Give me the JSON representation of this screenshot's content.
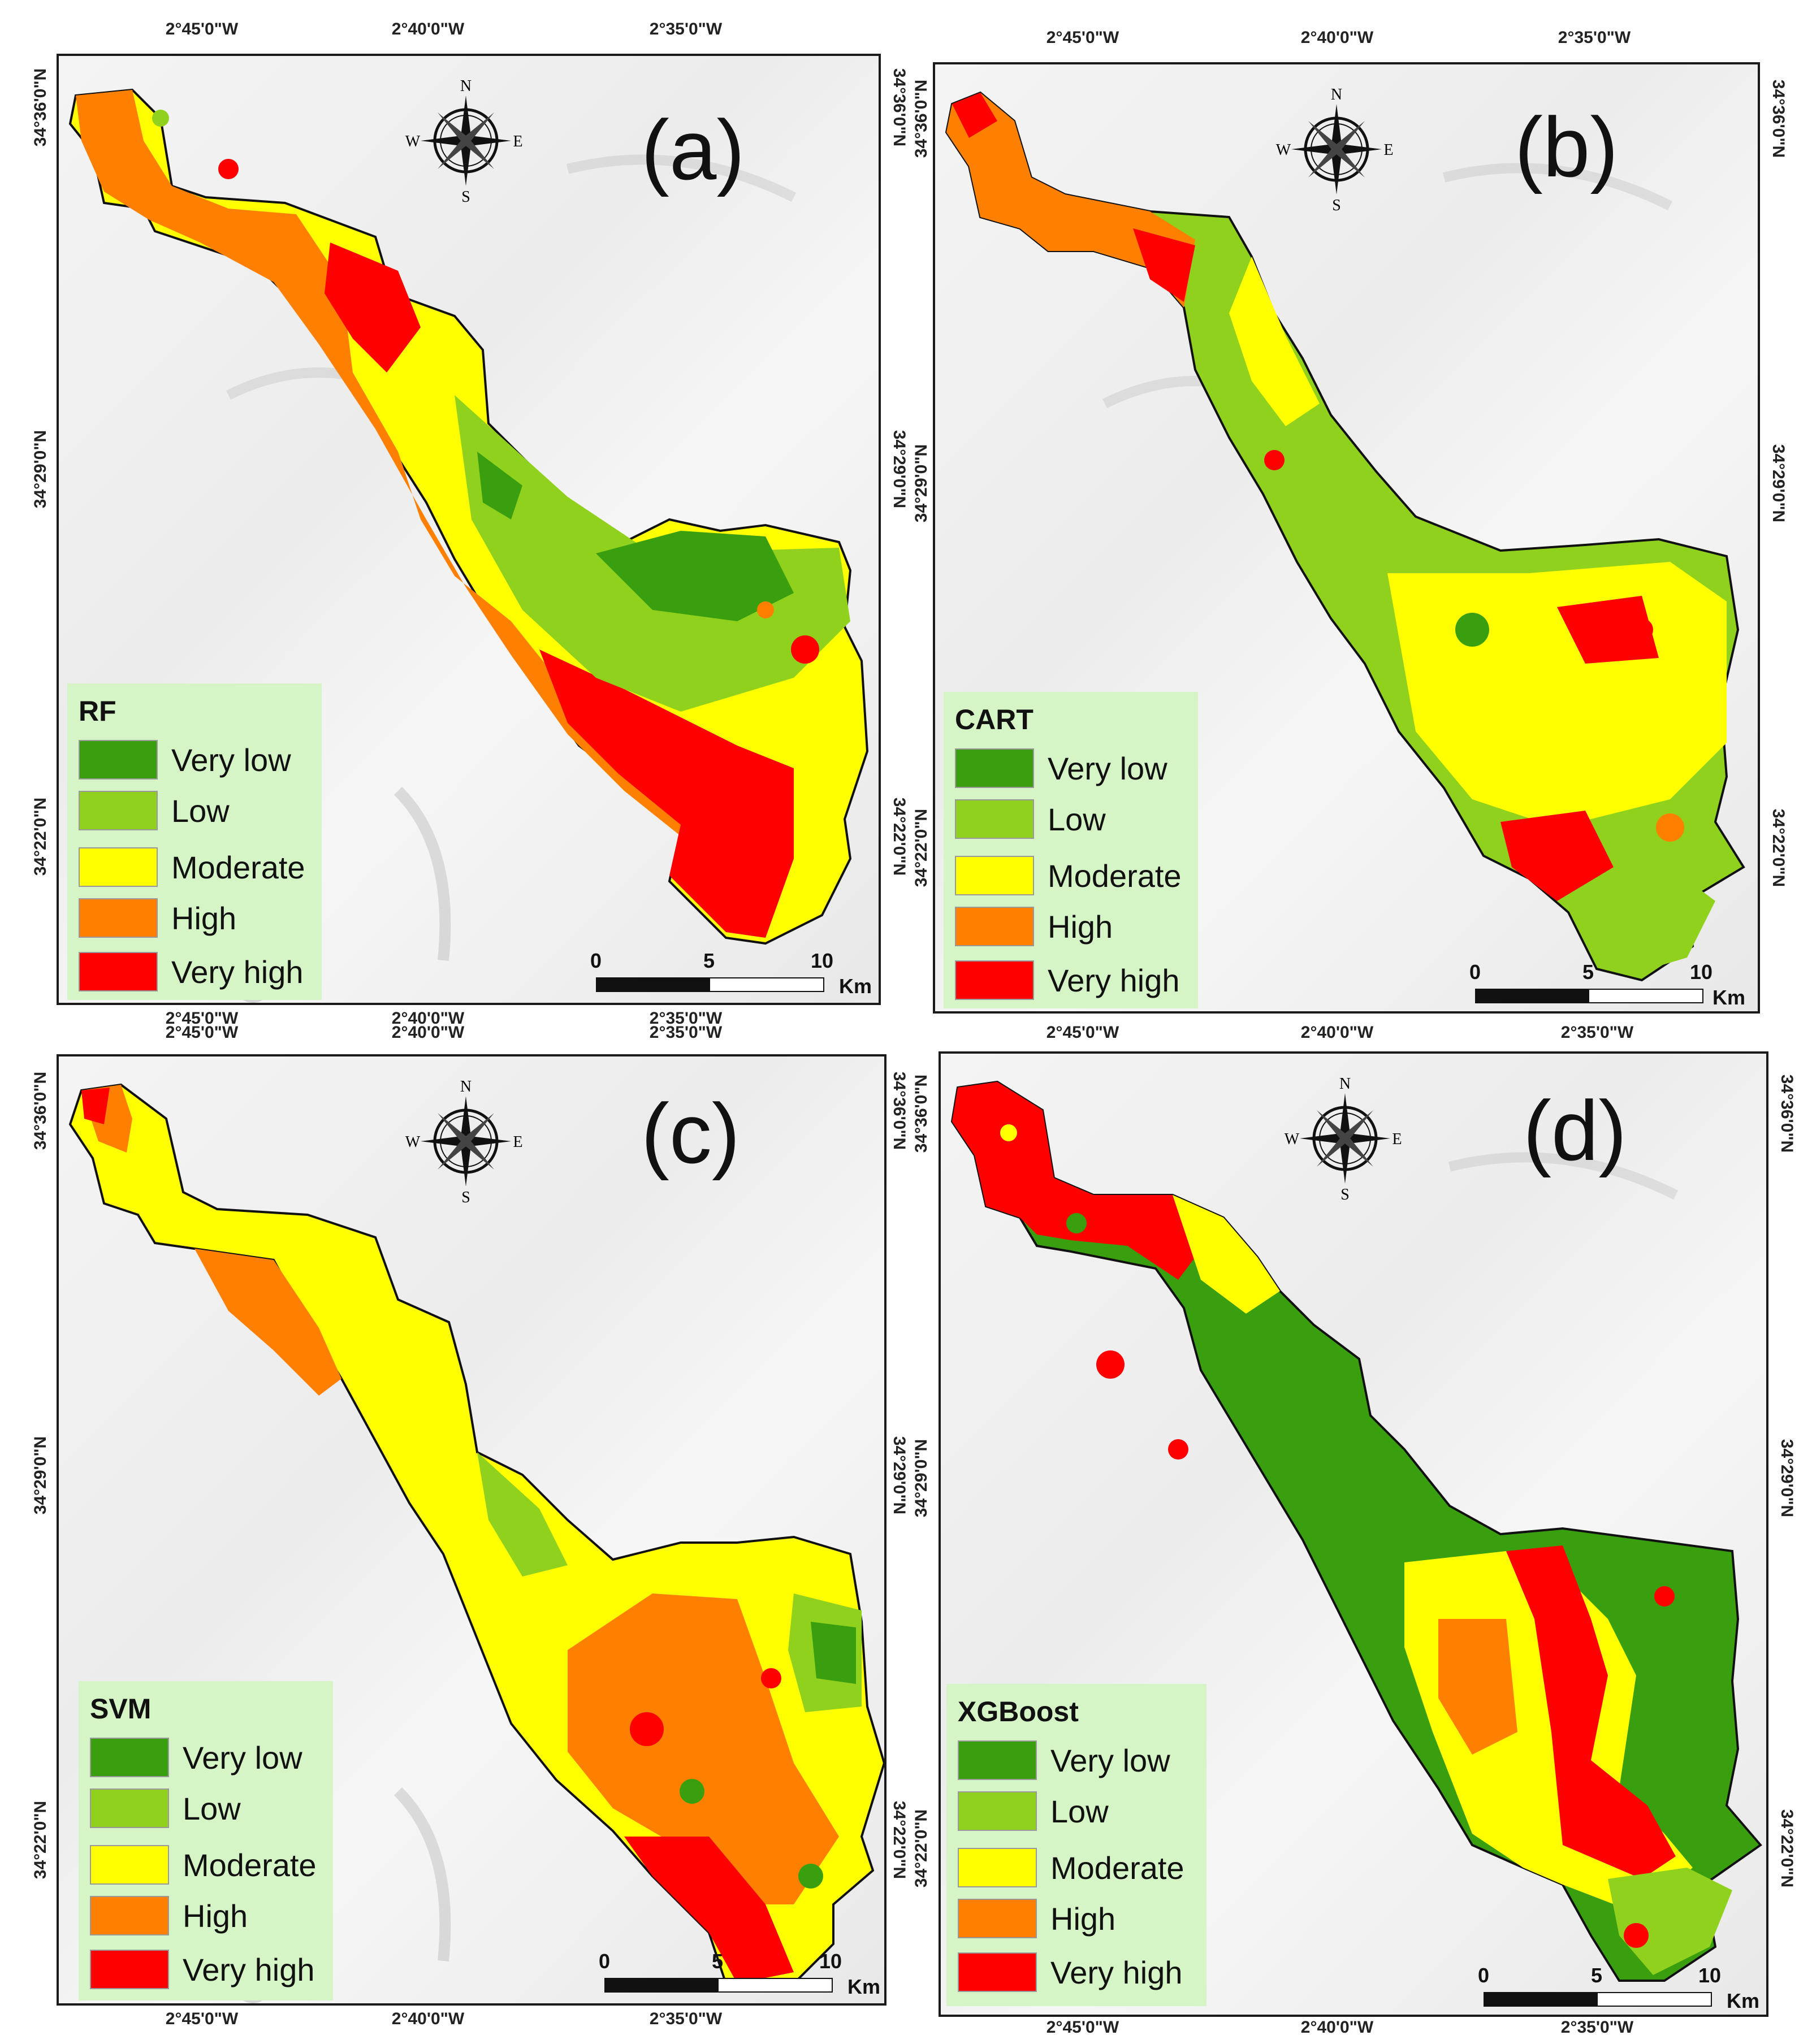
{
  "colors": {
    "very_low": "#3a9f0f",
    "low": "#8fd11d",
    "moderate": "#ffff00",
    "high": "#ff8000",
    "very_high": "#ff0000"
  },
  "coords": {
    "lon": [
      "2°45'0\"W",
      "2°40'0\"W",
      "2°35'0\"W"
    ],
    "lat": [
      "34°36'0\"N",
      "34°29'0\"N",
      "34°22'0\"N"
    ]
  },
  "compass": {
    "n": "N",
    "s": "S",
    "e": "E",
    "w": "W"
  },
  "scale": {
    "ticks": [
      "0",
      "5",
      "10"
    ],
    "unit": "Km"
  },
  "classes": [
    "Very low",
    "Low",
    "Moderate",
    "High",
    "Very high"
  ],
  "panels": [
    {
      "label": "(a)",
      "model": "RF"
    },
    {
      "label": "(b)",
      "model": "CART"
    },
    {
      "label": "(c)",
      "model": "SVM"
    },
    {
      "label": "(d)",
      "model": "XGBoost"
    }
  ]
}
